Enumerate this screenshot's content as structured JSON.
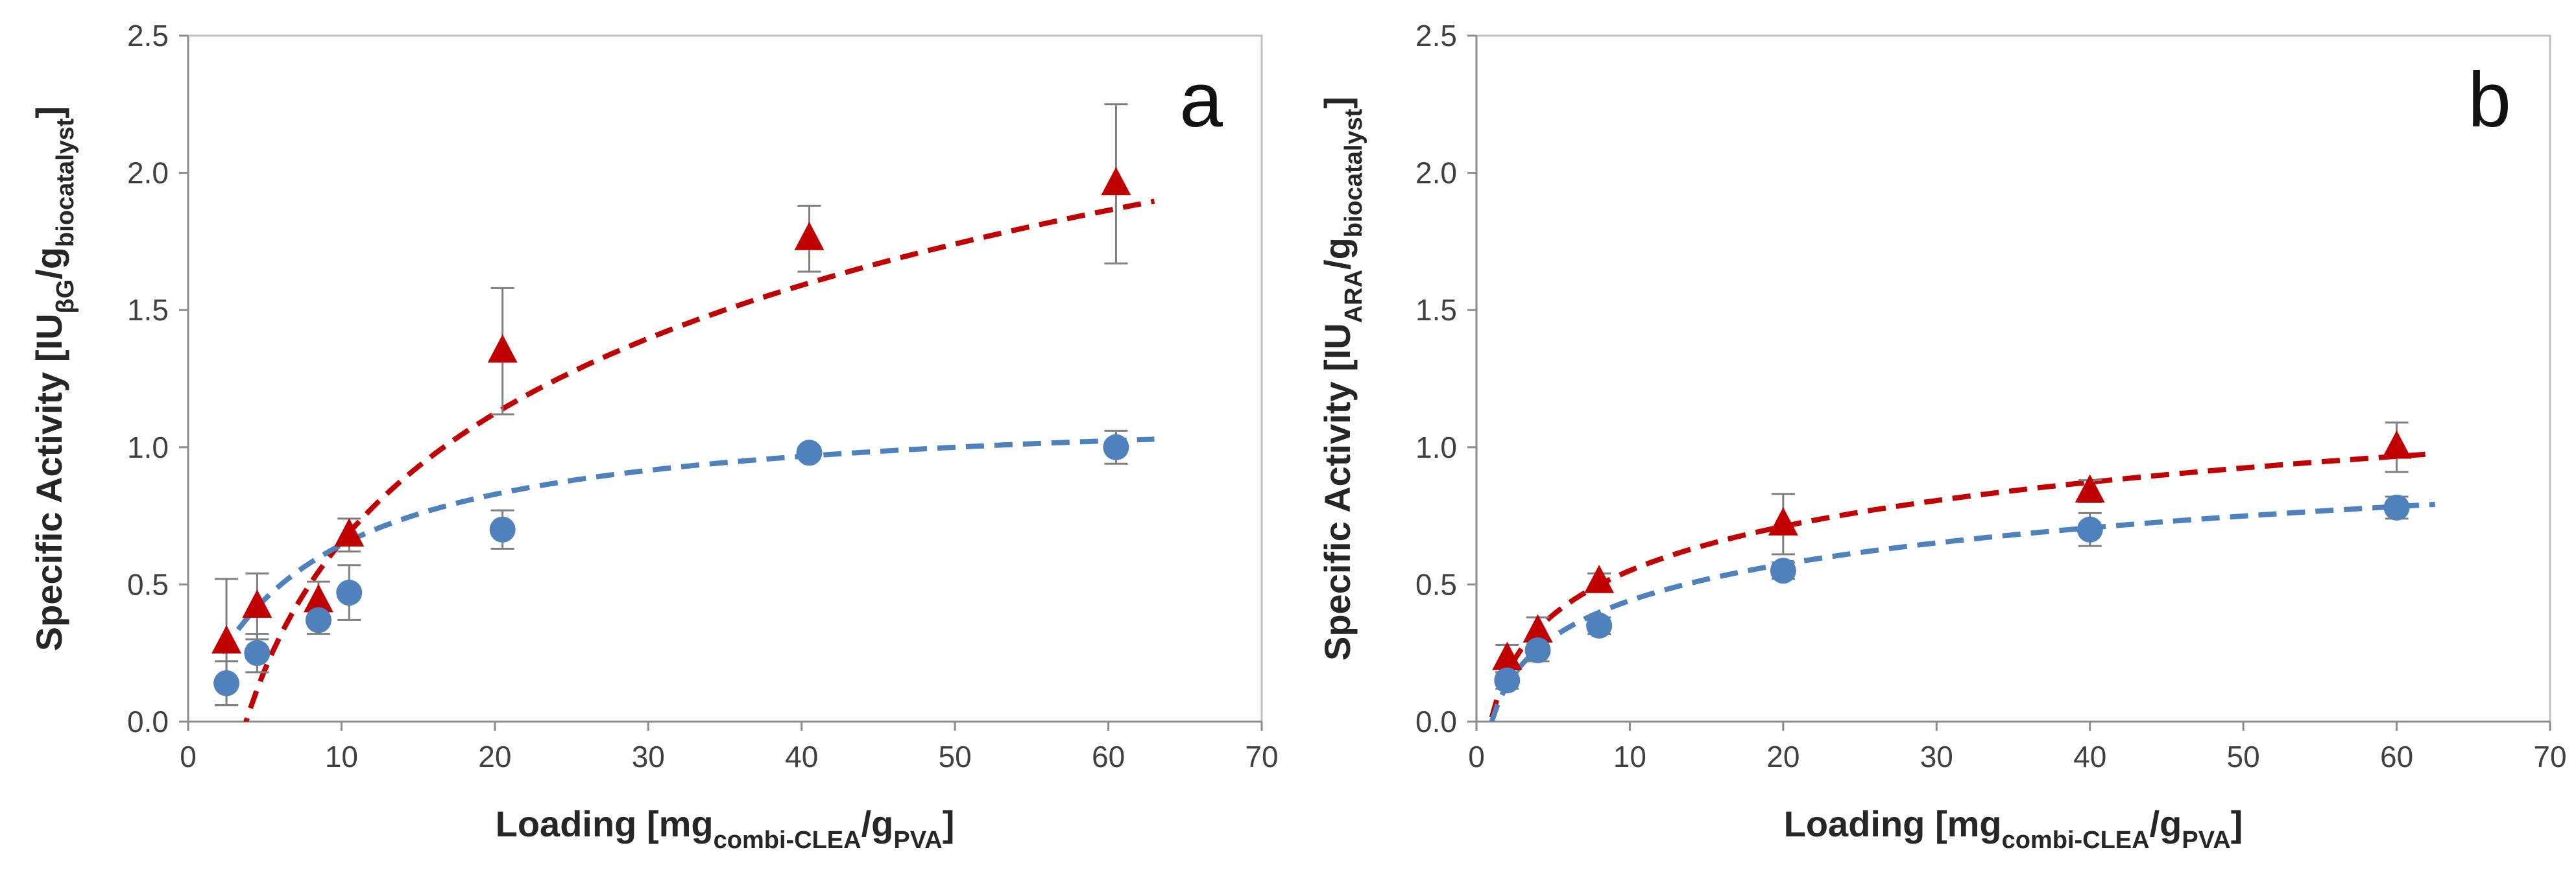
{
  "chart_data": [
    {
      "type": "scatter",
      "panel_label": "a",
      "xlabel": {
        "main": "Loading [mg",
        "sub1": "combi-CLEA",
        "mid": "/g",
        "sub2": "PVA",
        "end": "]"
      },
      "ylabel": {
        "main": "Specific Activity [IU",
        "sub1": "βG",
        "mid": "/g",
        "sub2": "biocatalyst",
        "end": "]"
      },
      "xlim": [
        0,
        70
      ],
      "ylim": [
        0,
        2.5
      ],
      "x_ticks": [
        "0",
        "10",
        "20",
        "30",
        "40",
        "50",
        "60",
        "70"
      ],
      "y_ticks": [
        "0.0",
        "0.5",
        "1.0",
        "1.5",
        "2.0",
        "2.5"
      ],
      "series": [
        {
          "name": "triangles",
          "marker": "triangle",
          "color": "#c00000",
          "points": [
            {
              "x": 2.5,
              "y": 0.29,
              "err": 0.23
            },
            {
              "x": 4.5,
              "y": 0.42,
              "err": 0.12
            },
            {
              "x": 8.5,
              "y": 0.44,
              "err": 0.07
            },
            {
              "x": 10.5,
              "y": 0.68,
              "err": 0.06
            },
            {
              "x": 20.5,
              "y": 1.35,
              "err": 0.23
            },
            {
              "x": 40.5,
              "y": 1.76,
              "err": 0.12
            },
            {
              "x": 60.5,
              "y": 1.96,
              "err": 0.29
            }
          ],
          "fit": {
            "model": "log",
            "a": -0.896,
            "b": 0.674,
            "x_start": 2.6,
            "x_end": 63.0
          }
        },
        {
          "name": "circles",
          "marker": "circle",
          "color": "#4f81bd",
          "points": [
            {
              "x": 2.5,
              "y": 0.14,
              "err": 0.08
            },
            {
              "x": 4.5,
              "y": 0.25,
              "err": 0.07
            },
            {
              "x": 8.5,
              "y": 0.37,
              "err": 0.05
            },
            {
              "x": 10.5,
              "y": 0.47,
              "err": 0.1
            },
            {
              "x": 20.5,
              "y": 0.7,
              "err": 0.07
            },
            {
              "x": 40.5,
              "y": 0.98,
              "err": 0.02
            },
            {
              "x": 60.5,
              "y": 1.0,
              "err": 0.06
            }
          ],
          "fit": {
            "model": "rational",
            "vmax": 1.16,
            "k": 8.0,
            "x_start": 2.2,
            "x_end": 63.0
          }
        }
      ]
    },
    {
      "type": "scatter",
      "panel_label": "b",
      "xlabel": {
        "main": "Loading [mg",
        "sub1": "combi-CLEA",
        "mid": "/g",
        "sub2": "PVA",
        "end": "]"
      },
      "ylabel": {
        "main": "Specific Activity [IU",
        "sub1": "ARA",
        "mid": "/g",
        "sub2": "biocatalyst",
        "end": "]"
      },
      "xlim": [
        0,
        70
      ],
      "ylim": [
        0,
        2.5
      ],
      "x_ticks": [
        "0",
        "10",
        "20",
        "30",
        "40",
        "50",
        "60",
        "70"
      ],
      "y_ticks": [
        "0.0",
        "0.5",
        "1.0",
        "1.5",
        "2.0",
        "2.5"
      ],
      "series": [
        {
          "name": "triangles",
          "marker": "triangle",
          "color": "#c00000",
          "points": [
            {
              "x": 2.0,
              "y": 0.23,
              "err": 0.05
            },
            {
              "x": 4.0,
              "y": 0.33,
              "err": 0.05
            },
            {
              "x": 8.0,
              "y": 0.51,
              "err": 0.03
            },
            {
              "x": 20.0,
              "y": 0.72,
              "err": 0.11
            },
            {
              "x": 40.0,
              "y": 0.84,
              "err": 0.04
            },
            {
              "x": 60.0,
              "y": 1.0,
              "err": 0.09
            }
          ],
          "fit": {
            "model": "log",
            "a": 0.015,
            "b": 0.2325,
            "x_start": 1.0,
            "x_end": 62.5
          }
        },
        {
          "name": "circles",
          "marker": "circle",
          "color": "#4f81bd",
          "points": [
            {
              "x": 2.0,
              "y": 0.15,
              "err": 0.03
            },
            {
              "x": 4.0,
              "y": 0.26,
              "err": 0.04
            },
            {
              "x": 8.0,
              "y": 0.35,
              "err": 0.03
            },
            {
              "x": 20.0,
              "y": 0.55,
              "err": 0.03
            },
            {
              "x": 40.0,
              "y": 0.7,
              "err": 0.06
            },
            {
              "x": 60.0,
              "y": 0.78,
              "err": 0.04
            }
          ],
          "fit": {
            "model": "log",
            "a": 0.0,
            "b": 0.1915,
            "x_start": 1.0,
            "x_end": 62.5
          }
        }
      ]
    }
  ]
}
